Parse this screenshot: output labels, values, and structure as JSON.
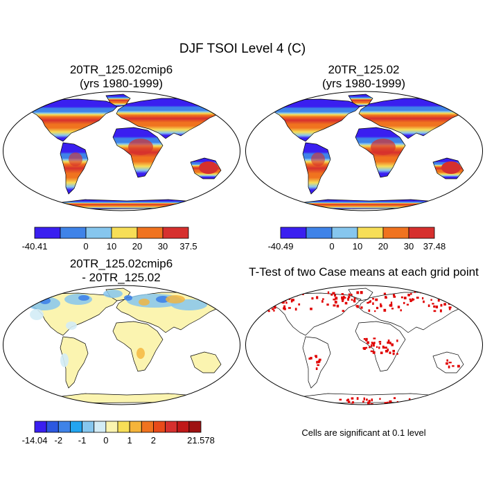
{
  "main_title": "DJF TSOI Level 4 (C)",
  "panels": [
    {
      "title_line1": "20TR_125.02cmip6",
      "title_line2": "(yrs 1980-1999)",
      "colorbar": {
        "colors": [
          "#3a1ff0",
          "#3f83e8",
          "#86c6ee",
          "#f7de57",
          "#f0731f",
          "#d6302e"
        ],
        "labels": [
          "-40.41",
          "0",
          "10",
          "20",
          "30",
          "37.5"
        ]
      }
    },
    {
      "title_line1": "20TR_125.02",
      "title_line2": "(yrs 1980-1999)",
      "colorbar": {
        "colors": [
          "#3a1ff0",
          "#3f83e8",
          "#86c6ee",
          "#f7de57",
          "#f0731f",
          "#d6302e"
        ],
        "labels": [
          "-40.49",
          "0",
          "10",
          "20",
          "30",
          "37.48"
        ]
      }
    },
    {
      "title_line1": "20TR_125.02cmip6",
      "title_line2": "- 20TR_125.02",
      "colorbar": {
        "colors": [
          "#3a1ff0",
          "#2c58e0",
          "#3f83e8",
          "#22a5f0",
          "#86c6ee",
          "#d3ecf6",
          "#fbf4b0",
          "#f7de57",
          "#f5b43a",
          "#f0731f",
          "#e84a1a",
          "#d6302e",
          "#c01818",
          "#9e1212"
        ],
        "labels": [
          "-14.04",
          "-2",
          "-1",
          "0",
          "1",
          "2",
          "21.578"
        ]
      }
    },
    {
      "title_line1": "T-Test of two Case means at each grid point",
      "title_line2": "",
      "note": "Cells are significant at 0.1 level"
    }
  ],
  "map_colors": {
    "ocean": "#ffffff",
    "coast": "#000000",
    "polar": "#3a1ff0",
    "cold": "#3f83e8",
    "cool": "#86c6ee",
    "mild": "#f7de57",
    "warm": "#f0731f",
    "hot": "#d6302e",
    "diff_base": "#fbf4b0",
    "diff_light": "#d3ecf6",
    "diff_cool": "#86c6ee",
    "diff_neg": "#3f83e8",
    "diff_pos": "#f5b43a",
    "sig": "#e00000"
  }
}
